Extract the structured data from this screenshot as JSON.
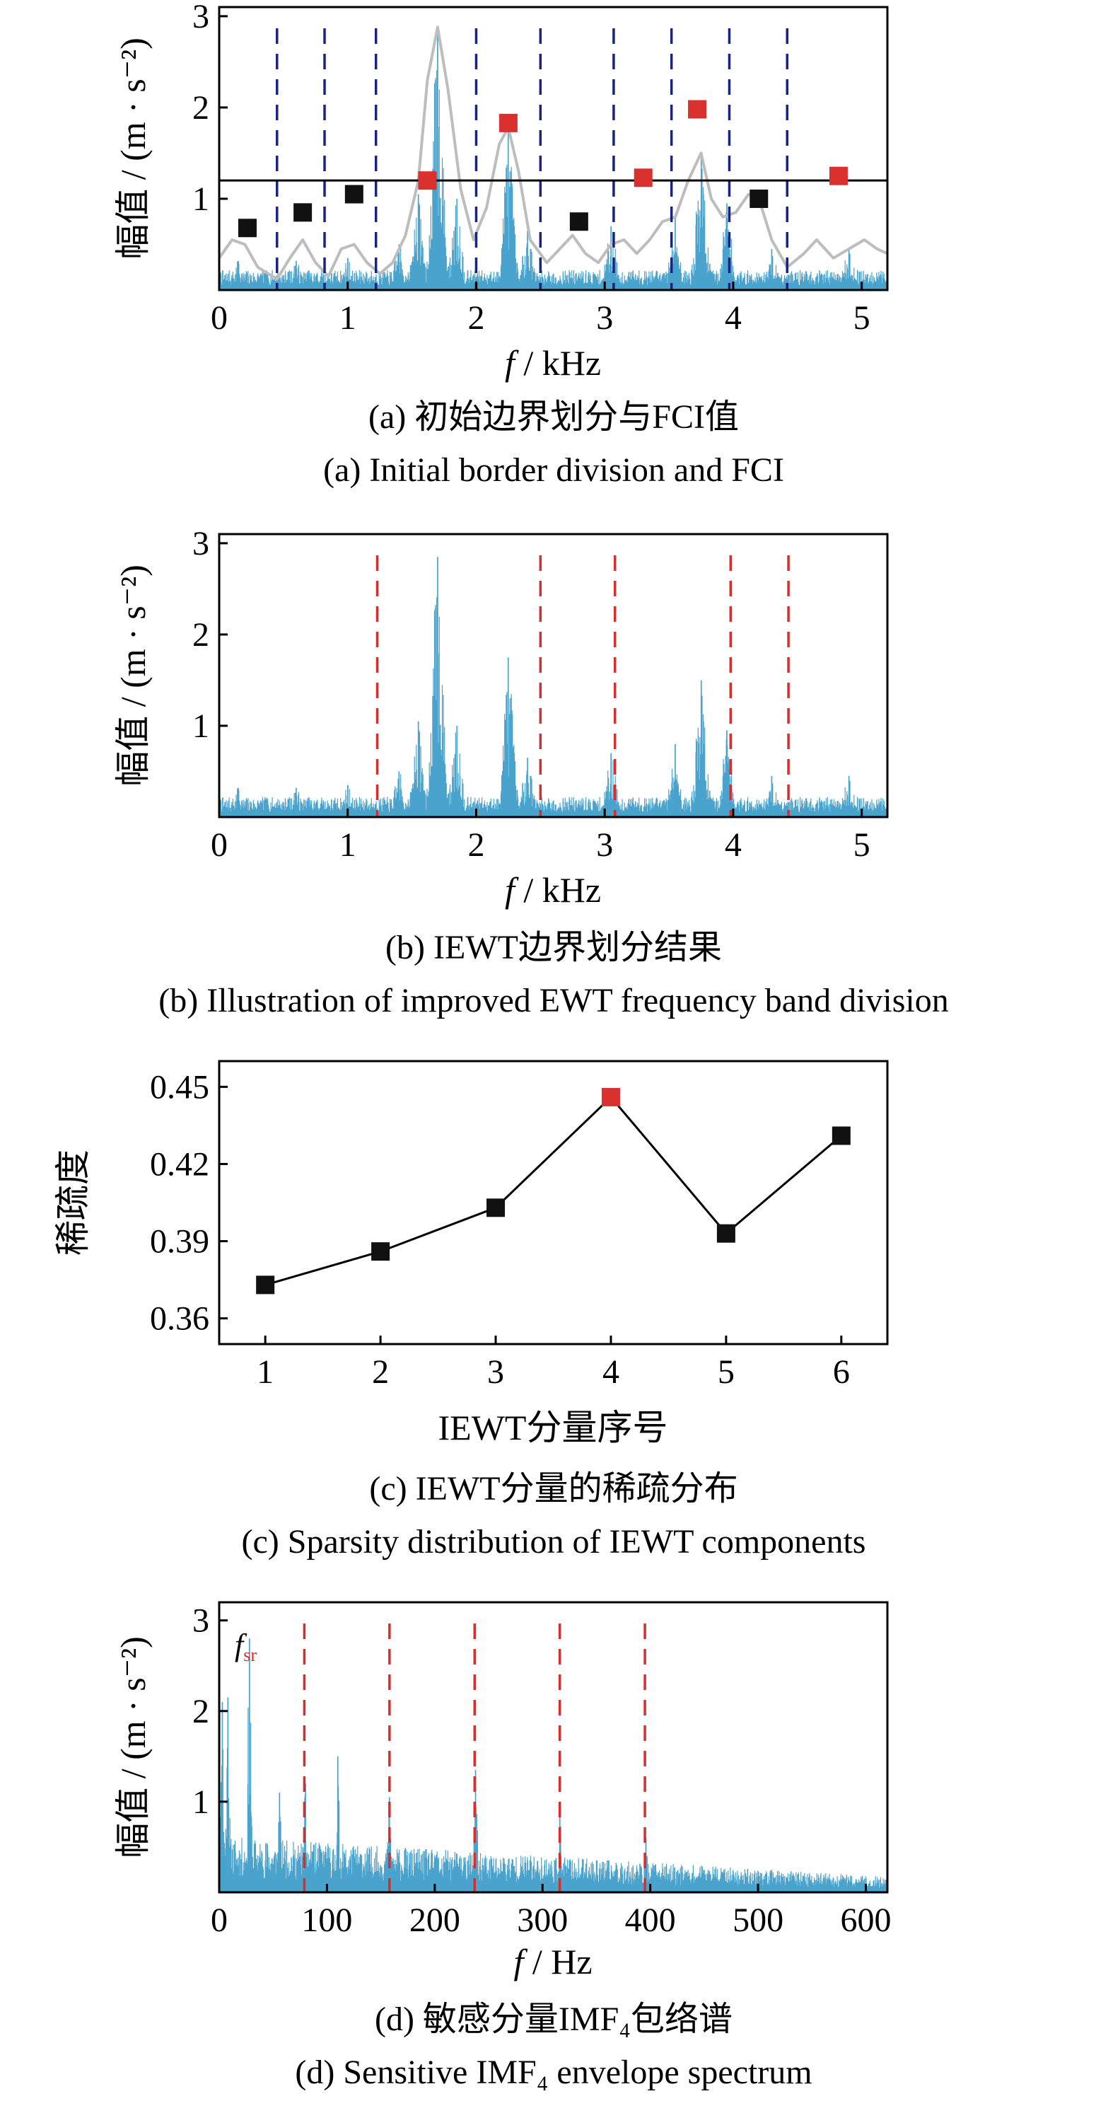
{
  "colors": {
    "spectrum": "#4aa3cc",
    "envelope": "#bdbdbd",
    "boundary_blue": "#1a237e",
    "boundary_red": "#d32f2f",
    "marker_black": "#111111",
    "marker_red": "#d9312d"
  },
  "chart_data": [
    {
      "id": "a",
      "type": "line",
      "caption_cn": "(a) 初始边界划分与FCI值",
      "caption_en": "(a) Initial border division and FCI",
      "xlabel_var": "f",
      "xlabel_unit": " / kHz",
      "ylabel": "幅值 / (m · s⁻²)",
      "xlim": [
        0,
        5.2
      ],
      "ylim": [
        0,
        3.1
      ],
      "xticks": [
        0,
        1,
        2,
        3,
        4,
        5
      ],
      "yticks": [
        1,
        2,
        3
      ],
      "spectrum_peaks": [
        {
          "f": 0.15,
          "a": 0.32
        },
        {
          "f": 0.6,
          "a": 0.32
        },
        {
          "f": 1.0,
          "a": 0.35
        },
        {
          "f": 1.4,
          "a": 0.5
        },
        {
          "f": 1.55,
          "a": 1.05
        },
        {
          "f": 1.7,
          "a": 2.85
        },
        {
          "f": 1.85,
          "a": 1.0
        },
        {
          "f": 2.25,
          "a": 1.75
        },
        {
          "f": 2.4,
          "a": 0.65
        },
        {
          "f": 3.05,
          "a": 0.7
        },
        {
          "f": 3.55,
          "a": 0.8
        },
        {
          "f": 3.75,
          "a": 1.5
        },
        {
          "f": 3.95,
          "a": 0.95
        },
        {
          "f": 4.3,
          "a": 0.45
        },
        {
          "f": 4.9,
          "a": 0.45
        }
      ],
      "envelope": [
        [
          0,
          0.35
        ],
        [
          0.1,
          0.55
        ],
        [
          0.2,
          0.5
        ],
        [
          0.3,
          0.25
        ],
        [
          0.45,
          0.12
        ],
        [
          0.55,
          0.35
        ],
        [
          0.65,
          0.55
        ],
        [
          0.75,
          0.3
        ],
        [
          0.85,
          0.15
        ],
        [
          0.95,
          0.45
        ],
        [
          1.05,
          0.5
        ],
        [
          1.15,
          0.3
        ],
        [
          1.25,
          0.18
        ],
        [
          1.35,
          0.3
        ],
        [
          1.45,
          0.6
        ],
        [
          1.55,
          1.2
        ],
        [
          1.62,
          2.3
        ],
        [
          1.7,
          2.88
        ],
        [
          1.78,
          2.2
        ],
        [
          1.88,
          1.1
        ],
        [
          1.98,
          0.55
        ],
        [
          2.08,
          0.9
        ],
        [
          2.18,
          1.6
        ],
        [
          2.25,
          1.78
        ],
        [
          2.33,
          1.3
        ],
        [
          2.42,
          0.55
        ],
        [
          2.55,
          0.3
        ],
        [
          2.65,
          0.45
        ],
        [
          2.75,
          0.6
        ],
        [
          2.85,
          0.4
        ],
        [
          2.95,
          0.3
        ],
        [
          3.05,
          0.5
        ],
        [
          3.15,
          0.55
        ],
        [
          3.25,
          0.4
        ],
        [
          3.35,
          0.55
        ],
        [
          3.45,
          0.75
        ],
        [
          3.55,
          0.8
        ],
        [
          3.65,
          1.2
        ],
        [
          3.75,
          1.5
        ],
        [
          3.83,
          1.0
        ],
        [
          3.92,
          0.8
        ],
        [
          4.02,
          0.85
        ],
        [
          4.12,
          1.05
        ],
        [
          4.2,
          1.0
        ],
        [
          4.3,
          0.55
        ],
        [
          4.42,
          0.25
        ],
        [
          4.55,
          0.4
        ],
        [
          4.65,
          0.55
        ],
        [
          4.78,
          0.35
        ],
        [
          4.9,
          0.45
        ],
        [
          5.02,
          0.55
        ],
        [
          5.12,
          0.45
        ],
        [
          5.2,
          0.4
        ]
      ],
      "boundaries": [
        0.45,
        0.82,
        1.22,
        2.0,
        2.5,
        3.07,
        3.52,
        3.97,
        4.42
      ],
      "boundary_style": "blue-dashed",
      "threshold": 1.2,
      "fci_markers": [
        {
          "f": 0.22,
          "v": 0.68,
          "selected": false
        },
        {
          "f": 0.65,
          "v": 0.85,
          "selected": false
        },
        {
          "f": 1.05,
          "v": 1.05,
          "selected": false
        },
        {
          "f": 1.62,
          "v": 1.2,
          "selected": true
        },
        {
          "f": 2.25,
          "v": 1.83,
          "selected": true
        },
        {
          "f": 2.8,
          "v": 0.75,
          "selected": false
        },
        {
          "f": 3.3,
          "v": 1.23,
          "selected": true
        },
        {
          "f": 3.72,
          "v": 1.98,
          "selected": true
        },
        {
          "f": 4.2,
          "v": 1.0,
          "selected": false
        },
        {
          "f": 4.82,
          "v": 1.25,
          "selected": true
        }
      ]
    },
    {
      "id": "b",
      "type": "line",
      "caption_cn": "(b) IEWT边界划分结果",
      "caption_en": "(b) Illustration of improved EWT frequency band division",
      "xlabel_var": "f",
      "xlabel_unit": " / kHz",
      "ylabel": "幅值 / (m · s⁻²)",
      "xlim": [
        0,
        5.2
      ],
      "ylim": [
        0,
        3.1
      ],
      "xticks": [
        0,
        1,
        2,
        3,
        4,
        5
      ],
      "yticks": [
        1,
        2,
        3
      ],
      "spectrum_peaks": [
        {
          "f": 0.15,
          "a": 0.32
        },
        {
          "f": 0.6,
          "a": 0.32
        },
        {
          "f": 1.0,
          "a": 0.35
        },
        {
          "f": 1.4,
          "a": 0.5
        },
        {
          "f": 1.55,
          "a": 1.05
        },
        {
          "f": 1.7,
          "a": 2.85
        },
        {
          "f": 1.85,
          "a": 1.0
        },
        {
          "f": 2.25,
          "a": 1.75
        },
        {
          "f": 2.4,
          "a": 0.65
        },
        {
          "f": 3.05,
          "a": 0.7
        },
        {
          "f": 3.55,
          "a": 0.8
        },
        {
          "f": 3.75,
          "a": 1.5
        },
        {
          "f": 3.95,
          "a": 0.95
        },
        {
          "f": 4.3,
          "a": 0.45
        },
        {
          "f": 4.9,
          "a": 0.45
        }
      ],
      "boundaries": [
        1.23,
        2.5,
        3.08,
        3.98,
        4.43
      ],
      "boundary_style": "red-dashed"
    },
    {
      "id": "c",
      "type": "line",
      "caption_cn": "(c) IEWT分量的稀疏分布",
      "caption_en": "(c) Sparsity distribution of IEWT components",
      "xlabel": "IEWT分量序号",
      "ylabel": "稀疏度",
      "xlim": [
        0.6,
        6.4
      ],
      "ylim": [
        0.35,
        0.46
      ],
      "xticks": [
        1,
        2,
        3,
        4,
        5,
        6
      ],
      "yticks": [
        0.36,
        0.39,
        0.42,
        0.45
      ],
      "ytick_labels": [
        "0.36",
        "0.39",
        "0.42",
        "0.45"
      ],
      "x": [
        1,
        2,
        3,
        4,
        5,
        6
      ],
      "y": [
        0.373,
        0.386,
        0.403,
        0.446,
        0.393,
        0.431
      ],
      "highlight_index": 3
    },
    {
      "id": "d",
      "type": "line",
      "caption_cn": "(d) 敏感分量IMF₄包络谱",
      "caption_en": "(d) Sensitive IMF₄ envelope spectrum",
      "xlabel_var": "f",
      "xlabel_unit": " / Hz",
      "ylabel": "幅值 / (m · s⁻²)",
      "xlim": [
        0,
        620
      ],
      "ylim": [
        0,
        3.2
      ],
      "xticks": [
        0,
        100,
        200,
        300,
        400,
        500,
        600
      ],
      "yticks": [
        1,
        2,
        3
      ],
      "spectrum_peaks": [
        {
          "f": 3,
          "a": 2.1
        },
        {
          "f": 8,
          "a": 2.15
        },
        {
          "f": 28,
          "a": 2.8
        },
        {
          "f": 56,
          "a": 1.1
        },
        {
          "f": 80,
          "a": 1.2
        },
        {
          "f": 110,
          "a": 1.5
        },
        {
          "f": 158,
          "a": 1.05
        },
        {
          "f": 238,
          "a": 1.35
        },
        {
          "f": 316,
          "a": 0.95
        },
        {
          "f": 396,
          "a": 0.6
        }
      ],
      "boundaries": [
        79,
        158,
        237,
        316,
        395
      ],
      "boundary_style": "red-dashed",
      "annotation_var": "f",
      "annotation_sub": "sr"
    }
  ]
}
